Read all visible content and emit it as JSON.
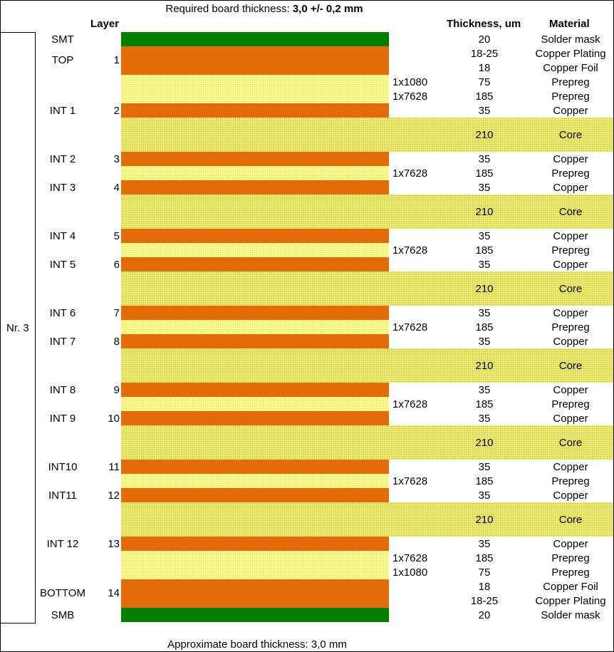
{
  "header": {
    "required_label": "Required board thickness:",
    "required_value": "3,0 +/- 0,2 mm",
    "col_layer": "Layer",
    "col_thickness": "Thickness, um",
    "col_material": "Material"
  },
  "stack_label": "Nr. 3",
  "footer": "Approximate board thickness: 3,0 mm",
  "colors": {
    "copper": "#e26b0a",
    "solder_mask": "#007f00",
    "prepreg": "#ffff9a",
    "core": "#f0ed7a"
  },
  "layer_names": [
    {
      "name": "SMT",
      "num": ""
    },
    {
      "name": "TOP",
      "num": "1"
    },
    {
      "name": "INT 1",
      "num": "2"
    },
    {
      "name": "INT 2",
      "num": "3"
    },
    {
      "name": "INT 3",
      "num": "4"
    },
    {
      "name": "INT 4",
      "num": "5"
    },
    {
      "name": "INT 5",
      "num": "6"
    },
    {
      "name": "INT 6",
      "num": "7"
    },
    {
      "name": "INT 7",
      "num": "8"
    },
    {
      "name": "INT 8",
      "num": "9"
    },
    {
      "name": "INT 9",
      "num": "10"
    },
    {
      "name": "INT10",
      "num": "11"
    },
    {
      "name": "INT11",
      "num": "12"
    },
    {
      "name": "INT 12",
      "num": "13"
    },
    {
      "name": "BOTTOM",
      "num": "14"
    },
    {
      "name": "SMB",
      "num": ""
    }
  ],
  "rows": [
    {
      "kind": "mask",
      "glass": "",
      "thickness": "20",
      "material": "Solder mask"
    },
    {
      "kind": "copper",
      "glass": "",
      "thickness": "18-25",
      "material": "Copper Plating"
    },
    {
      "kind": "copper",
      "glass": "",
      "thickness": "18",
      "material": "Copper Foil"
    },
    {
      "kind": "prepreg",
      "glass": "1x1080",
      "thickness": "75",
      "material": "Prepreg"
    },
    {
      "kind": "prepreg",
      "glass": "1x7628",
      "thickness": "185",
      "material": "Prepreg"
    },
    {
      "kind": "copper",
      "glass": "",
      "thickness": "35",
      "material": "Copper"
    },
    {
      "kind": "core",
      "glass": "",
      "thickness": "210",
      "material": "Core"
    },
    {
      "kind": "copper",
      "glass": "",
      "thickness": "35",
      "material": "Copper"
    },
    {
      "kind": "prepreg",
      "glass": "1x7628",
      "thickness": "185",
      "material": "Prepreg"
    },
    {
      "kind": "copper",
      "glass": "",
      "thickness": "35",
      "material": "Copper"
    },
    {
      "kind": "core",
      "glass": "",
      "thickness": "210",
      "material": "Core"
    },
    {
      "kind": "copper",
      "glass": "",
      "thickness": "35",
      "material": "Copper"
    },
    {
      "kind": "prepreg",
      "glass": "1x7628",
      "thickness": "185",
      "material": "Prepreg"
    },
    {
      "kind": "copper",
      "glass": "",
      "thickness": "35",
      "material": "Copper"
    },
    {
      "kind": "core",
      "glass": "",
      "thickness": "210",
      "material": "Core"
    },
    {
      "kind": "copper",
      "glass": "",
      "thickness": "35",
      "material": "Copper"
    },
    {
      "kind": "prepreg",
      "glass": "1x7628",
      "thickness": "185",
      "material": "Prepreg"
    },
    {
      "kind": "copper",
      "glass": "",
      "thickness": "35",
      "material": "Copper"
    },
    {
      "kind": "core",
      "glass": "",
      "thickness": "210",
      "material": "Core"
    },
    {
      "kind": "copper",
      "glass": "",
      "thickness": "35",
      "material": "Copper"
    },
    {
      "kind": "prepreg",
      "glass": "1x7628",
      "thickness": "185",
      "material": "Prepreg"
    },
    {
      "kind": "copper",
      "glass": "",
      "thickness": "35",
      "material": "Copper"
    },
    {
      "kind": "core",
      "glass": "",
      "thickness": "210",
      "material": "Core"
    },
    {
      "kind": "copper",
      "glass": "",
      "thickness": "35",
      "material": "Copper"
    },
    {
      "kind": "prepreg",
      "glass": "1x7628",
      "thickness": "185",
      "material": "Prepreg"
    },
    {
      "kind": "copper",
      "glass": "",
      "thickness": "35",
      "material": "Copper"
    },
    {
      "kind": "core",
      "glass": "",
      "thickness": "210",
      "material": "Core"
    },
    {
      "kind": "copper",
      "glass": "",
      "thickness": "35",
      "material": "Copper"
    },
    {
      "kind": "prepreg",
      "glass": "1x7628",
      "thickness": "185",
      "material": "Prepreg"
    },
    {
      "kind": "prepreg",
      "glass": "1x1080",
      "thickness": "75",
      "material": "Prepreg"
    },
    {
      "kind": "copper",
      "glass": "",
      "thickness": "18",
      "material": "Copper Foil"
    },
    {
      "kind": "copper",
      "glass": "",
      "thickness": "18-25",
      "material": "Copper Plating"
    },
    {
      "kind": "mask",
      "glass": "",
      "thickness": "20",
      "material": "Solder mask"
    }
  ]
}
